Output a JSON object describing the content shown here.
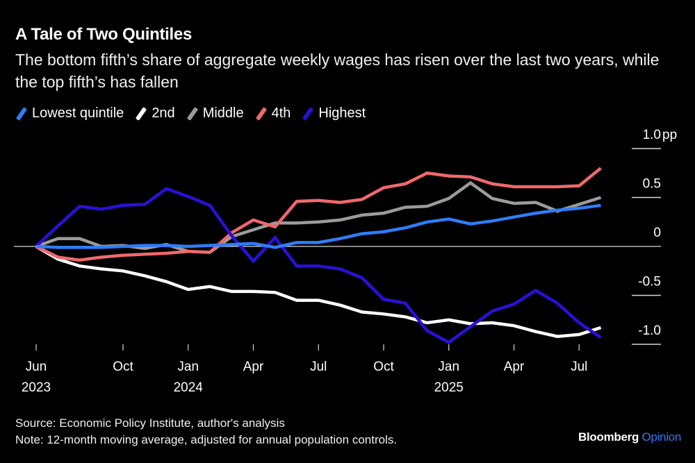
{
  "chart_data": {
    "type": "line",
    "title": "A Tale of Two Quintiles",
    "subtitle": "The bottom fifth’s share of aggregate weekly wages has risen over the last two years, while the top fifth’s has fallen",
    "xlabel": "",
    "ylabel": "",
    "y_unit_label": "pp",
    "ylim": [
      -1.0,
      1.0
    ],
    "yticks": [
      {
        "value": 1.0,
        "label": "1.0"
      },
      {
        "value": 0.5,
        "label": "0.5"
      },
      {
        "value": 0,
        "label": "0"
      },
      {
        "value": -0.5,
        "label": "-0.5"
      },
      {
        "value": -1.0,
        "label": "-1.0"
      }
    ],
    "x_start": "2023-06",
    "x_months": 27,
    "xticks": [
      {
        "month_index": 0,
        "label": "Jun",
        "year": "2023"
      },
      {
        "month_index": 4,
        "label": "Oct",
        "year": ""
      },
      {
        "month_index": 7,
        "label": "Jan",
        "year": "2024"
      },
      {
        "month_index": 10,
        "label": "Apr",
        "year": ""
      },
      {
        "month_index": 13,
        "label": "Jul",
        "year": ""
      },
      {
        "month_index": 16,
        "label": "Oct",
        "year": ""
      },
      {
        "month_index": 19,
        "label": "Jan",
        "year": "2025"
      },
      {
        "month_index": 22,
        "label": "Apr",
        "year": ""
      },
      {
        "month_index": 25,
        "label": "Jul",
        "year": ""
      }
    ],
    "grid": false,
    "legend_position": "top-left",
    "series": [
      {
        "name": "Lowest quintile",
        "color": "#2f7cf6",
        "values": [
          0,
          -0.01,
          -0.01,
          -0.01,
          0,
          0.01,
          0.01,
          0,
          0.01,
          0.02,
          0.03,
          -0.01,
          0.04,
          0.04,
          0.08,
          0.13,
          0.15,
          0.19,
          0.25,
          0.28,
          0.23,
          0.26,
          0.3,
          0.34,
          0.37,
          0.39,
          0.42
        ]
      },
      {
        "name": "2nd",
        "color": "#ffffff",
        "values": [
          0,
          -0.13,
          -0.2,
          -0.23,
          -0.25,
          -0.3,
          -0.36,
          -0.44,
          -0.41,
          -0.46,
          -0.46,
          -0.47,
          -0.55,
          -0.55,
          -0.6,
          -0.67,
          -0.69,
          -0.72,
          -0.78,
          -0.75,
          -0.79,
          -0.78,
          -0.81,
          -0.87,
          -0.92,
          -0.9,
          -0.83
        ]
      },
      {
        "name": "Middle",
        "color": "#9b9b9b",
        "values": [
          0,
          0.08,
          0.08,
          0,
          0.01,
          -0.02,
          0.02,
          -0.05,
          -0.06,
          0.1,
          0.17,
          0.24,
          0.24,
          0.25,
          0.27,
          0.32,
          0.34,
          0.4,
          0.41,
          0.49,
          0.65,
          0.49,
          0.44,
          0.45,
          0.36,
          0.43,
          0.5
        ]
      },
      {
        "name": "4th",
        "color": "#f0696b",
        "values": [
          0,
          -0.11,
          -0.14,
          -0.11,
          -0.09,
          -0.08,
          -0.07,
          -0.05,
          -0.06,
          0.14,
          0.27,
          0.2,
          0.46,
          0.47,
          0.45,
          0.48,
          0.6,
          0.64,
          0.75,
          0.72,
          0.71,
          0.64,
          0.61,
          0.61,
          0.61,
          0.62,
          0.8
        ]
      },
      {
        "name": "Highest",
        "color": "#2a10d8",
        "values": [
          0,
          0.21,
          0.41,
          0.38,
          0.42,
          0.43,
          0.59,
          0.51,
          0.42,
          0.11,
          -0.15,
          0.09,
          -0.2,
          -0.2,
          -0.23,
          -0.32,
          -0.54,
          -0.58,
          -0.86,
          -0.98,
          -0.82,
          -0.66,
          -0.59,
          -0.45,
          -0.58,
          -0.78,
          -0.93
        ]
      }
    ]
  },
  "header": {
    "title": "A Tale of Two Quintiles",
    "subtitle": "The bottom fifth’s share of aggregate weekly wages has risen over the last two years, while the top fifth’s has fallen"
  },
  "legend": [
    {
      "label": "Lowest quintile",
      "color": "#2f7cf6"
    },
    {
      "label": "2nd",
      "color": "#ffffff"
    },
    {
      "label": "Middle",
      "color": "#9b9b9b"
    },
    {
      "label": "4th",
      "color": "#f0696b"
    },
    {
      "label": "Highest",
      "color": "#2a10d8"
    }
  ],
  "footer": {
    "source": "Source: Economic Policy Institute, author's analysis",
    "note": "Note: 12-month moving average, adjusted for annual population controls."
  },
  "brand": {
    "name": "Bloomberg",
    "accent": "Opinion",
    "accent_color": "#2f7cf6"
  }
}
